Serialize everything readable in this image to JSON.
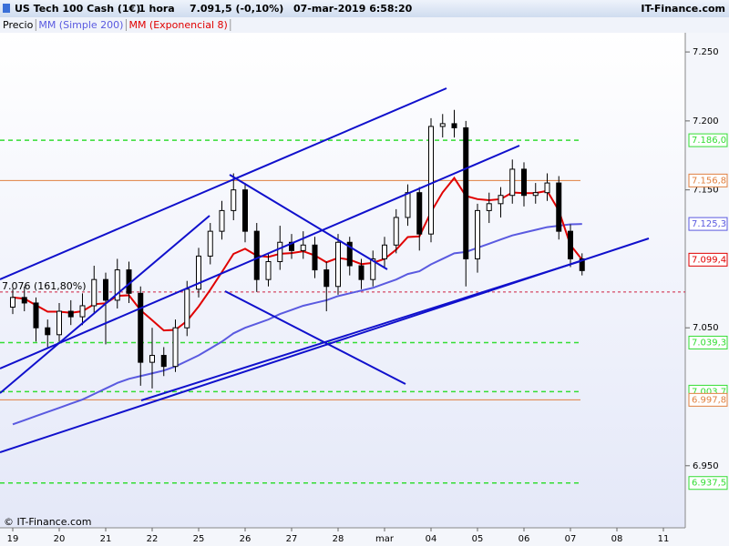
{
  "header": {
    "symbol": "US Tech 100 Cash (1€)",
    "interval": "1 hora",
    "quote": "7.091,5 (-0,10%)",
    "datetime": "07-mar-2019 6:58:20",
    "brand": "IT-Finance.com"
  },
  "watermark": "© IT-Finance.com",
  "chart_data": {
    "type": "candlestick",
    "categories": [
      "19",
      null,
      null,
      null,
      "20",
      null,
      null,
      null,
      "21",
      null,
      null,
      null,
      "22",
      null,
      null,
      null,
      "25",
      null,
      null,
      null,
      "26",
      null,
      null,
      null,
      "27",
      null,
      null,
      null,
      "28",
      null,
      null,
      null,
      "mar",
      null,
      null,
      null,
      "04",
      null,
      null,
      null,
      "05",
      null,
      null,
      null,
      "06",
      null,
      null,
      null,
      "07",
      null,
      null,
      null,
      "08",
      null,
      null,
      null,
      "11",
      null,
      null,
      null
    ],
    "ylim": [
      6905,
      7256
    ],
    "yticks": [
      {
        "value": 6950,
        "label": "6.950"
      },
      {
        "value": 7050,
        "label": "7.050"
      },
      {
        "value": 7150,
        "label": "7.150"
      },
      {
        "value": 7200,
        "label": "7.200"
      },
      {
        "value": 7250,
        "label": "7.250"
      }
    ],
    "up_color": "#ffffff",
    "down_color": "#000000",
    "series": [
      {
        "name": "Precio",
        "type": "candlestick",
        "color": "#000000",
        "open": [
          7065,
          7072,
          7068,
          7050,
          7045,
          7062,
          7058,
          7066,
          7085,
          7070,
          7092,
          7075,
          7025,
          7030,
          7022,
          7050,
          7078,
          7102,
          7120,
          7135,
          7150,
          7120,
          7085,
          7098,
          7112,
          7106,
          7110,
          7092,
          7080,
          7112,
          7095,
          7085,
          7100,
          7110,
          7130,
          7148,
          7118,
          7196,
          7198,
          7195,
          7100,
          7135,
          7140,
          7146,
          7165,
          7146,
          7148,
          7155,
          7120,
          7100,
          null,
          null,
          null,
          null,
          null,
          null,
          null,
          null,
          null,
          null
        ],
        "high": [
          7078,
          7080,
          7072,
          7056,
          7068,
          7070,
          7075,
          7095,
          7090,
          7100,
          7098,
          7080,
          7050,
          7036,
          7056,
          7084,
          7108,
          7126,
          7142,
          7162,
          7155,
          7126,
          7104,
          7124,
          7118,
          7120,
          7116,
          7098,
          7118,
          7116,
          7100,
          7106,
          7116,
          7136,
          7154,
          7152,
          7202,
          7205,
          7208,
          7200,
          7140,
          7148,
          7152,
          7172,
          7170,
          7155,
          7162,
          7160,
          7125,
          7104,
          null,
          null,
          null,
          null,
          null,
          null,
          null,
          null,
          null,
          null
        ],
        "low": [
          7060,
          7062,
          7040,
          7036,
          7040,
          7052,
          7052,
          7060,
          7038,
          7064,
          7068,
          7008,
          7006,
          7015,
          7018,
          7044,
          7072,
          7096,
          7114,
          7128,
          7112,
          7076,
          7080,
          7092,
          7100,
          7100,
          7086,
          7062,
          7074,
          7088,
          7078,
          7080,
          7094,
          7104,
          7124,
          7106,
          7112,
          7188,
          7188,
          7080,
          7090,
          7126,
          7130,
          7140,
          7138,
          7140,
          7142,
          7114,
          7094,
          7088,
          null,
          null,
          null,
          null,
          null,
          null,
          null,
          null,
          null,
          null
        ],
        "close": [
          7072,
          7068,
          7050,
          7045,
          7062,
          7058,
          7066,
          7085,
          7070,
          7092,
          7075,
          7025,
          7030,
          7022,
          7050,
          7078,
          7102,
          7120,
          7135,
          7150,
          7120,
          7085,
          7098,
          7112,
          7106,
          7110,
          7092,
          7080,
          7112,
          7095,
          7085,
          7100,
          7110,
          7130,
          7148,
          7118,
          7196,
          7198,
          7195,
          7100,
          7135,
          7140,
          7146,
          7165,
          7146,
          7148,
          7155,
          7120,
          7100,
          7091.5,
          null,
          null,
          null,
          null,
          null,
          null,
          null,
          null,
          null,
          null
        ]
      },
      {
        "name": "MM (Simple 200)",
        "type": "line",
        "color": "#5a5ae0",
        "last_label": "7.125,3",
        "values": [
          6980,
          6983,
          6986,
          6989,
          6992,
          6995,
          6998,
          7002,
          7006,
          7010,
          7013,
          7015,
          7017,
          7019,
          7022,
          7026,
          7030,
          7035,
          7040,
          7046,
          7050,
          7053,
          7056,
          7060,
          7063,
          7066,
          7068,
          7070,
          7073,
          7075,
          7077,
          7079,
          7082,
          7085,
          7089,
          7091,
          7096,
          7100,
          7104,
          7105,
          7108,
          7111,
          7114,
          7117,
          7119,
          7121,
          7123,
          7124,
          7125,
          7125.3,
          null,
          null,
          null,
          null,
          null,
          null,
          null,
          null,
          null,
          null
        ]
      },
      {
        "name": "MM (Exponencial 8)",
        "type": "line",
        "color": "#e00000",
        "last_label": "7.099,4",
        "values": [
          7072,
          7071.1,
          7066.4,
          7061.7,
          7061.7,
          7060.9,
          7062,
          7067.1,
          7067.8,
          7073.2,
          7073.6,
          7062.8,
          7055.5,
          7048.1,
          7048.5,
          7055,
          7065.5,
          7077.6,
          7090.4,
          7103.6,
          7107.3,
          7102.3,
          7101.4,
          7103.7,
          7104.2,
          7105.5,
          7102.5,
          7097.5,
          7100.7,
          7099.4,
          7096.2,
          7097.1,
          7100,
          7106.6,
          7115.8,
          7116.3,
          7134,
          7148.2,
          7158.6,
          7145.6,
          7143.3,
          7142.5,
          7143.3,
          7148.1,
          7147.6,
          7147.7,
          7149.3,
          7135,
          7110,
          7099.4,
          null,
          null,
          null,
          null,
          null,
          null,
          null,
          null,
          null,
          null
        ]
      }
    ],
    "hlines": [
      {
        "value": 7186.0,
        "label": "7.186,0",
        "color": "#33dd33",
        "dashed": true
      },
      {
        "value": 7156.8,
        "label": "7.156,8",
        "color": "#e08040",
        "dashed": false
      },
      {
        "value": 7039.3,
        "label": "7.039,3",
        "color": "#33dd33",
        "dashed": true
      },
      {
        "value": 7003.7,
        "label": "7.003,7",
        "color": "#33dd33",
        "dashed": true
      },
      {
        "value": 6997.8,
        "label": "6.997,8",
        "color": "#e08040",
        "dashed": false
      },
      {
        "value": 6937.5,
        "label": "6.937,5",
        "color": "#33dd33",
        "dashed": true
      }
    ],
    "fib_line": {
      "value": 7076,
      "label": "7.076 (161,80%)",
      "color": "#d02040"
    }
  }
}
